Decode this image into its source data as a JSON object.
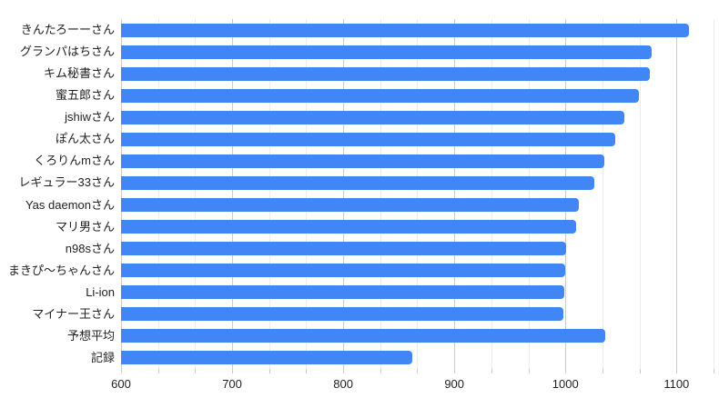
{
  "chart_data": {
    "type": "bar",
    "orientation": "horizontal",
    "title": "",
    "xlabel": "",
    "ylabel": "",
    "categories": [
      "きんたろーーさん",
      "グランパはちさん",
      "キム秘書さん",
      "蜜五郎さん",
      "jshiwさん",
      "ぽん太さん",
      "くろりんmさん",
      "レギュラー33さん",
      "Yas daemonさん",
      "マリ男さん",
      "n98sさん",
      "まきぴ～ちゃんさん",
      "Li-ion",
      "マイナー王さん",
      "予想平均",
      "記録"
    ],
    "values": [
      1111,
      1078,
      1076,
      1066,
      1053,
      1045,
      1035,
      1026,
      1012,
      1010,
      1001,
      1000,
      999,
      998,
      1036,
      862
    ],
    "xlim": [
      600,
      1133.333
    ],
    "x_major_ticks": [
      600,
      700,
      800,
      900,
      1000,
      1100
    ],
    "x_minor_step": 33.333,
    "grid": true,
    "legend": "none",
    "colors": {
      "bar": "#4285f4",
      "major_gridline": "#cccccc",
      "minor_gridline": "#ebebeb",
      "tick": "#cccccc",
      "axis_label": "#222222",
      "background": "#ffffff"
    }
  }
}
